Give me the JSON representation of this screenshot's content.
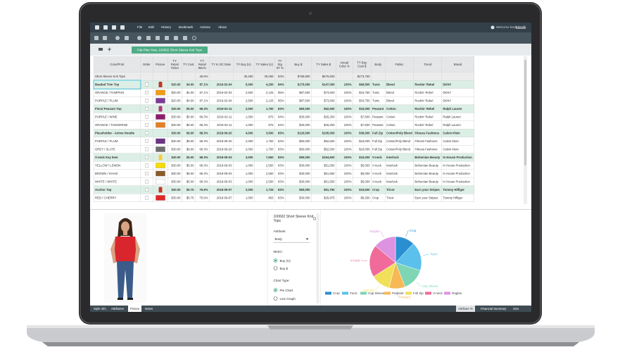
{
  "menu": {
    "items": [
      "File",
      "Edit",
      "History",
      "Bookmark",
      "Actions",
      "About"
    ],
    "user_greeting": "Welcome back,",
    "user_name": "Klassik"
  },
  "tab": {
    "title": "Fab Plan Year, 100602 Short Sleeve Knit Tops"
  },
  "table": {
    "columns": [
      "Color/Print",
      "Order",
      "Picture",
      "TY Retail Ticket",
      "TY Cost",
      "TY Retail IMU%",
      "TY In DC Date",
      "TY Buy (U)",
      "TY Sales (U)",
      "TY Stg ST %",
      "Buy $",
      "TY Sales $",
      "Actual Color %",
      "TY Buy Cost $",
      "Body",
      "Fabric",
      "Trend",
      "Brand"
    ],
    "summary": [
      "Short Sleeve Knit Tops",
      null,
      null,
      null,
      null,
      "46.6%",
      null,
      "36,250",
      "30,065",
      "83%",
      "$796,800",
      "$676,500",
      null,
      "$273,750",
      null,
      null,
      null,
      null
    ],
    "rows": [
      {
        "kind": "style",
        "selected": true,
        "thumb": "#c0392b",
        "cells": [
          "Beaded Trim Top",
          null,
          null,
          "$20.00",
          "$4.00",
          "87.1%",
          "2019-02-04",
          "5,000",
          "4,250",
          "84%",
          "$175,000",
          "$147,000",
          "100%",
          "$69,500",
          "Tunic",
          "Blend",
          "Rockin' Rebel",
          "DKNY"
        ]
      },
      {
        "kind": "color",
        "swatch": "#f39c12",
        "cells": [
          "ORANGE / PUMPKIN",
          null,
          null,
          "$20.00",
          "$4.00",
          "87.1%",
          "2019-02-04",
          "2,500",
          "2,125",
          "85%",
          "$87,500",
          "$73,500",
          "100%",
          "$34,750",
          "Tunic",
          "Blend",
          "Rockin' Rebel",
          "DKNY"
        ]
      },
      {
        "kind": "color",
        "swatch": "#7d3c98",
        "cells": [
          "PURPLE / PLUM",
          null,
          null,
          "$20.00",
          "$4.00",
          "87.1%",
          "2019-02-04",
          "2,500",
          "2,125",
          "85%",
          "$87,500",
          "$73,500",
          "100%",
          "$34,750",
          "Tunic",
          "Blend",
          "Rockin' Rebel",
          "DKNY"
        ]
      },
      {
        "kind": "style",
        "thumb": "#b03a7a",
        "cells": [
          "Floral Peasant Top",
          null,
          null,
          "$30.00",
          "$5.00",
          "68.3%",
          "2019-02-11",
          "2,000",
          "1,750",
          "83%",
          "$60,000",
          "$52,500",
          "100%",
          "$15,000",
          "Peasant",
          "Cotton",
          "Rockin' Rebel",
          "Ralph Lauren"
        ]
      },
      {
        "kind": "color",
        "swatch": "#8e1b6e",
        "cells": [
          "PURPLE / WINE",
          null,
          null,
          "$30.00",
          "$5.00",
          "68.3%",
          "2019-02-11",
          "1,000",
          "875",
          "84%",
          "$30,000",
          "$26,250",
          "100%",
          "$7,500",
          "Peasant",
          "Cotton",
          "Rockin' Rebel",
          "Ralph Lauren"
        ]
      },
      {
        "kind": "color",
        "swatch": "#e67e22",
        "cells": [
          "ORANGE / TANGERINE",
          null,
          null,
          "$30.00",
          "$5.00",
          "68.3%",
          "2019-02-11",
          "1,000",
          "875",
          "84%",
          "$30,000",
          "$26,250",
          "100%",
          "$7,500",
          "Peasant",
          "Cotton",
          "Rockin' Rebel",
          "Ralph Lauren"
        ]
      },
      {
        "kind": "style",
        "cells": [
          "Placeholder - Active Hoodie",
          null,
          null,
          "$30.00",
          "$9.00",
          "68.3%",
          "2018-09-20",
          "4,000",
          "3,500",
          "83%",
          "$120,000",
          "$105,000",
          "100%",
          "$36,000",
          "Full Zip",
          "Cotton/Poly Blend",
          "Fitness Fashions",
          "Calvin Klein"
        ]
      },
      {
        "kind": "color",
        "swatch": "#6c3483",
        "cells": [
          "PURPLE / PLUM",
          null,
          null,
          "$30.00",
          "$9.00",
          "68.3%",
          "2018-09-20",
          "2,000",
          "1,750",
          "83%",
          "$60,000",
          "$52,500",
          "100%",
          "$18,000",
          "Full Zip",
          "Cotton/Poly Blend",
          "Fitness Fashions",
          "Calvin Klein"
        ]
      },
      {
        "kind": "color",
        "swatch": "#6e6e6e",
        "cells": [
          "GREY / SLATE",
          null,
          null,
          "$30.00",
          "$9.00",
          "68.3%",
          "2018-09-20",
          "2,000",
          "1,750",
          "83%",
          "$60,000",
          "$52,500",
          "100%",
          "$18,000",
          "Full Zip",
          "Cotton/Poly Blend",
          "Fitness Fashions",
          "Calvin Klein"
        ]
      },
      {
        "kind": "style",
        "thumb": "#f4d03f",
        "cells": [
          "V-neck Key Item",
          null,
          null,
          "$30.00",
          "$5.00",
          "68.3%",
          "2018-09-03",
          "3,000",
          "7,650",
          "83%",
          "$90,000",
          "$154,600",
          "100%",
          "$15,000",
          "V-neck",
          "Interlock",
          "Bohemian Beauty",
          "In House Production"
        ]
      },
      {
        "kind": "color",
        "swatch": "#f7dc00",
        "cells": [
          "YELLOW / LEMON",
          null,
          null,
          "$30.00",
          "$5.00",
          "68.3%",
          "2018-09-03",
          "1,000",
          "2,550",
          "83%",
          "$30,000",
          "$51,550",
          "100%",
          "$5,000",
          "V-neck",
          "Interlock",
          "Bohemian Beauty",
          "In House Production"
        ]
      },
      {
        "kind": "color",
        "swatch": "#8b5a2b",
        "cells": [
          "BROWN / KHAKI",
          null,
          null,
          "$30.00",
          "$5.00",
          "68.3%",
          "2018-09-03",
          "1,000",
          "2,550",
          "83%",
          "$30,000",
          "$51,550",
          "100%",
          "$5,000",
          "V-neck",
          "Interlock",
          "Bohemian Beauty",
          "In House Production"
        ]
      },
      {
        "kind": "color",
        "swatch": "#ffffff",
        "cells": [
          "WHITE / WHITE",
          null,
          null,
          "$30.00",
          "$5.00",
          "68.3%",
          "2018-09-03",
          "1,000",
          "2,550",
          "83%",
          "$30,000",
          "$51,550",
          "100%",
          "$5,000",
          "V-neck",
          "Interlock",
          "Bohemian Beauty",
          "In House Production"
        ]
      },
      {
        "kind": "style",
        "thumb": "#c0392b",
        "cells": [
          "Anchor Top",
          null,
          null,
          "$30.00",
          "$5.75",
          "75.6%",
          "2018-09-07",
          "2,000",
          "1,725",
          "83%",
          "$60,000",
          "$51,750",
          "100%",
          "$16,500",
          "Crop",
          "Tricot",
          "Earn your Stripes",
          "Tommy Hilfiger"
        ]
      },
      {
        "kind": "color",
        "swatch": "#e32626",
        "cells": [
          "RED / CHERRY",
          null,
          null,
          "$30.00",
          "$5.75",
          "75.6%",
          "2018-09-07",
          "1,000",
          "863",
          "83%",
          "$30,000",
          "$25,875",
          "100%",
          "$8,250",
          "Crop",
          "Tricot",
          "Earn your Stripes",
          "Tommy Hilfiger"
        ]
      }
    ]
  },
  "settings_panel": {
    "title": "100602 Short Sleeve Knit Tops",
    "attribute_label": "Attribute:",
    "attribute_value": "Body",
    "metric_label": "Metric:",
    "metrics": [
      "Buy (U)",
      "Buy $"
    ],
    "chart_type_label": "Chart Type:",
    "chart_types": [
      "Pie Chart",
      "Line Graph"
    ]
  },
  "pie": {
    "type": "pie",
    "categories": [
      "Crop",
      "Tunic",
      "Cap Sleeve",
      "Peasant",
      "Full Zip",
      "V-neck",
      "Raglan"
    ],
    "values": [
      12,
      18,
      14,
      10,
      12,
      20,
      14
    ],
    "colors": [
      "#2a8fd0",
      "#5bc0eb",
      "#7ed6b4",
      "#f7b955",
      "#f0e05a",
      "#f06b9a",
      "#dd93e0"
    ]
  },
  "bottom_tabs": {
    "left": [
      "Style Info",
      "Attributes",
      "Picture",
      "Notes"
    ],
    "right": [
      "Attribute %",
      "Financial Summary",
      "Size"
    ]
  }
}
